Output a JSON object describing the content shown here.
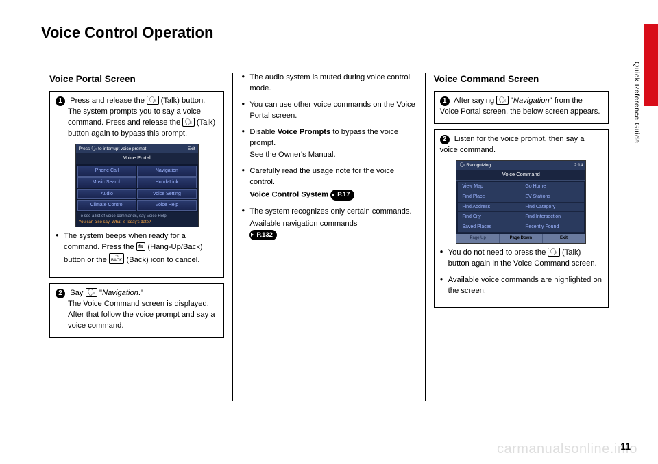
{
  "page": {
    "title": "Voice Control Operation",
    "side_label": "Quick Reference Guide",
    "page_number": "11",
    "watermark": "carmanualsonline.info"
  },
  "col1": {
    "section_title": "Voice Portal Screen",
    "step1": {
      "num": "1",
      "line1_a": "Press and release the ",
      "line1_b": " (Talk) button.",
      "line2_a": "The system prompts you to say a voice command. Press and release the ",
      "line2_b": " (Talk) button again to bypass this prompt.",
      "bullet_a": "The system beeps when ready for a command. Press the ",
      "bullet_b": " (Hang-Up/Back) button or the ",
      "bullet_c": " (Back) icon to cancel."
    },
    "step2": {
      "num": "2",
      "line1_a": "Say ",
      "line1_b": " \"",
      "line1_italic": "Navigation",
      "line1_c": ".\"",
      "line2": "The Voice Command screen is displayed.",
      "line3": "After that follow the voice prompt and say a voice command."
    },
    "portal_screen": {
      "header_left": "Press",
      "header_mid": "to interrupt voice prompt",
      "header_right": "Exit",
      "title": "Voice Portal",
      "cells": [
        "Phone Call",
        "Navigation",
        "Music Search",
        "HondaLink",
        "Audio",
        "Voice Setting",
        "Climate Control",
        "Voice Help"
      ],
      "footer1": "To see a list of voice commands, say Voice Help",
      "footer2": "You can also say: What is today's date?"
    }
  },
  "col2": {
    "bullets": [
      {
        "text": "The audio system is muted during voice control mode."
      },
      {
        "text": "You can use other voice commands on the Voice Portal screen."
      },
      {
        "text_a": "Disable ",
        "bold": "Voice Prompts",
        "text_b": " to bypass the voice prompt.",
        "sub": "See the Owner's Manual."
      },
      {
        "text": "Carefully read the usage note for the voice control.",
        "sub_bold": "Voice Control System",
        "ref": "P.17"
      },
      {
        "text": "The system recognizes only certain commands.",
        "sub": "Available navigation commands",
        "ref": "P.132"
      }
    ]
  },
  "col3": {
    "section_title": "Voice Command Screen",
    "step1": {
      "num": "1",
      "text_a": "After saying ",
      "text_b": " \"",
      "italic": "Navigation",
      "text_c": "\" from the Voice Portal screen, the below screen appears."
    },
    "step2": {
      "num": "2",
      "text": "Listen for the voice prompt, then say a voice command.",
      "bullet1_a": "You do not need to press the ",
      "bullet1_b": " (Talk) button again in the Voice Command screen.",
      "bullet2": "Available voice commands are highlighted on the screen."
    },
    "cmd_screen": {
      "header_left": "Recognizing",
      "header_right": "2:14",
      "title": "Voice Command",
      "cells": [
        "View Map",
        "Go Home",
        "Find Place",
        "EV Stations",
        "Find Address",
        "Find Category",
        "Find City",
        "Find Intersection",
        "Saved Places",
        "Recently Found"
      ],
      "bottom": [
        "Page Up",
        "Page Down",
        "Exit"
      ]
    }
  },
  "icons": {
    "talk": "🗣",
    "hangup": "⇋",
    "back_arrow": "⮌",
    "back_text": "BACK"
  }
}
